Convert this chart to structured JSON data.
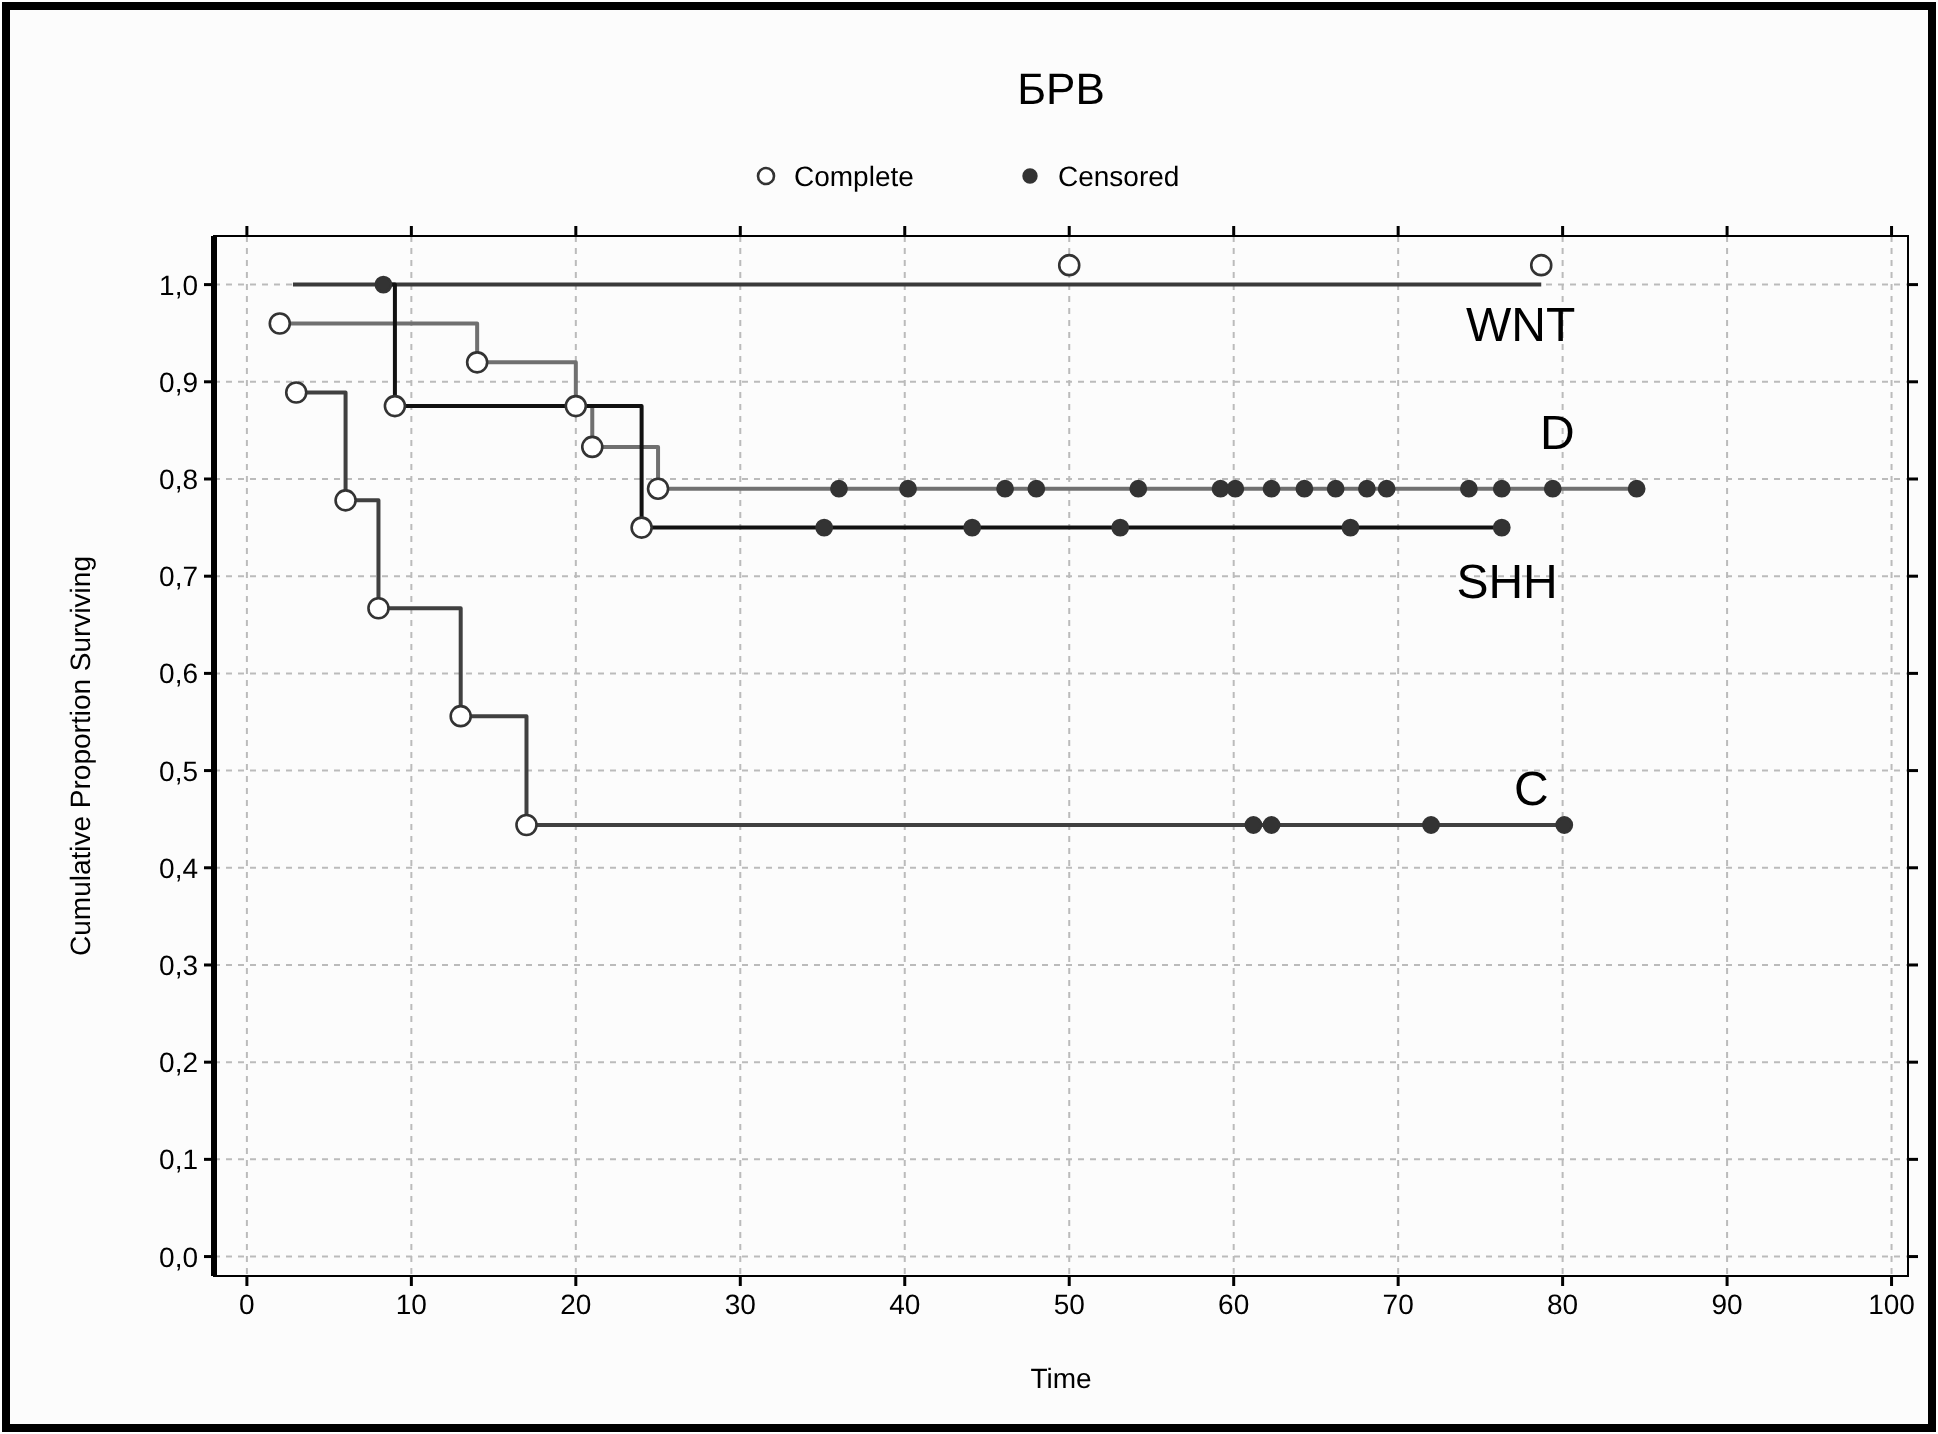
{
  "chart_data": {
    "type": "step",
    "title": "БРВ",
    "xlabel": "Time",
    "ylabel": "Cumulative Proportion Surviving",
    "xlim": [
      -2,
      101
    ],
    "xticks": [
      0,
      10,
      20,
      30,
      40,
      50,
      60,
      70,
      80,
      90,
      100
    ],
    "ylim": [
      -0.02,
      1.05
    ],
    "yticks": [
      {
        "value": 0,
        "label": "0,0"
      },
      {
        "value": 0.1,
        "label": "0,1"
      },
      {
        "value": 0.2,
        "label": "0,2"
      },
      {
        "value": 0.3,
        "label": "0,3"
      },
      {
        "value": 0.4,
        "label": "0,4"
      },
      {
        "value": 0.5,
        "label": "0,5"
      },
      {
        "value": 0.6,
        "label": "0,6"
      },
      {
        "value": 0.7,
        "label": "0,7"
      },
      {
        "value": 0.8,
        "label": "0,8"
      },
      {
        "value": 0.9,
        "label": "0,9"
      },
      {
        "value": 1,
        "label": "1,0"
      }
    ],
    "grid": true,
    "legend": "top",
    "line_style": "solid",
    "series": [
      {
        "name": "WNT",
        "type": "step",
        "color": "#3a3a3a",
        "x": [
          2.8,
          78.7
        ],
        "values": [
          1,
          1
        ]
      },
      {
        "name": "D",
        "type": "step",
        "color": "#707070",
        "x": [
          2,
          14,
          20,
          21,
          25,
          84.5
        ],
        "values": [
          0.96,
          0.92,
          0.875,
          0.833,
          0.79,
          0.79
        ]
      },
      {
        "name": "SHH",
        "type": "step",
        "color": "#111111",
        "x": [
          8.3,
          9,
          24,
          76.3
        ],
        "values": [
          1,
          0.875,
          0.75,
          0.75
        ]
      },
      {
        "name": "C",
        "type": "step",
        "color": "#404040",
        "x": [
          3,
          6,
          8,
          13,
          17,
          80
        ],
        "values": [
          0.889,
          0.778,
          0.667,
          0.556,
          0.444,
          0.444
        ]
      },
      {
        "name": "Complete",
        "type": "scatter",
        "marker": "circle",
        "color": "#ffffff",
        "x": [
          2,
          14,
          20,
          21,
          25,
          9,
          24,
          3,
          6,
          8,
          13,
          17,
          50,
          78.7
        ],
        "values": [
          0.96,
          0.92,
          0.875,
          0.833,
          0.79,
          0.875,
          0.75,
          0.889,
          0.778,
          0.667,
          0.556,
          0.444,
          1.02,
          1.02
        ]
      },
      {
        "name": "Censored",
        "type": "scatter",
        "marker": "circle",
        "color": "#333333",
        "x": [
          8.3,
          36,
          40.2,
          46.1,
          48,
          54.2,
          59.2,
          60.1,
          62.3,
          64.3,
          66.2,
          68.1,
          69.3,
          74.3,
          76.3,
          79.4,
          84.5,
          35.1,
          44.1,
          53.1,
          67.1,
          76.3,
          61.2,
          62.3,
          72,
          80.1
        ],
        "values": [
          1,
          0.79,
          0.79,
          0.79,
          0.79,
          0.79,
          0.79,
          0.79,
          0.79,
          0.79,
          0.79,
          0.79,
          0.79,
          0.79,
          0.79,
          0.79,
          0.79,
          0.75,
          0.75,
          0.75,
          0.75,
          0.75,
          0.444,
          0.444,
          0.444,
          0.444
        ]
      }
    ]
  }
}
